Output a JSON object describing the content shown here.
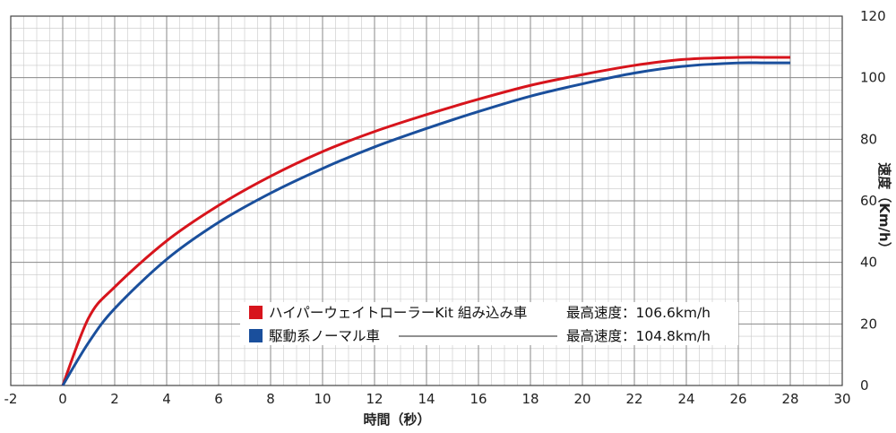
{
  "chart_data": {
    "type": "line",
    "title": "",
    "xlabel": "時間（秒）",
    "ylabel": "速度（Km/h）",
    "xlim": [
      -2,
      30
    ],
    "ylim": [
      0,
      120
    ],
    "x_ticks": [
      -2,
      0,
      2,
      4,
      6,
      8,
      10,
      12,
      14,
      16,
      18,
      20,
      22,
      24,
      26,
      28,
      30
    ],
    "y_ticks": [
      0,
      20,
      40,
      60,
      80,
      100,
      120
    ],
    "x_tick_labels": [
      "-2",
      "0",
      "2",
      "4",
      "6",
      "8",
      "10",
      "12",
      "14",
      "16",
      "18",
      "20",
      "22",
      "24",
      "26",
      "28",
      "30"
    ],
    "y_tick_labels": [
      "0",
      "20",
      "40",
      "60",
      "80",
      "100",
      "120"
    ],
    "grid": true,
    "legend_position": "center-right",
    "series": [
      {
        "name": "ハイパーウェイトローラーKit 組み込み車",
        "legend_value": "最高速度：106.6km/h",
        "color": "#d7141c",
        "x": [
          0,
          1,
          2,
          4,
          6,
          8,
          10,
          12,
          14,
          16,
          18,
          20,
          22,
          24,
          26,
          27,
          28
        ],
        "y": [
          0,
          22,
          32,
          47,
          58.5,
          68,
          76,
          82.5,
          88,
          93,
          97.5,
          101,
          104,
          106,
          106.6,
          106.6,
          106.6
        ]
      },
      {
        "name": "駆動系ノーマル車",
        "legend_value": "最高速度：104.8km/h",
        "color": "#1a4f9c",
        "x": [
          0,
          1,
          2,
          4,
          6,
          8,
          10,
          12,
          14,
          16,
          18,
          20,
          22,
          24,
          26,
          27,
          28
        ],
        "y": [
          0,
          14,
          25,
          41,
          53,
          62.5,
          70.5,
          77.5,
          83.5,
          89,
          94,
          98,
          101.5,
          103.8,
          104.8,
          104.8,
          104.8
        ]
      }
    ]
  }
}
